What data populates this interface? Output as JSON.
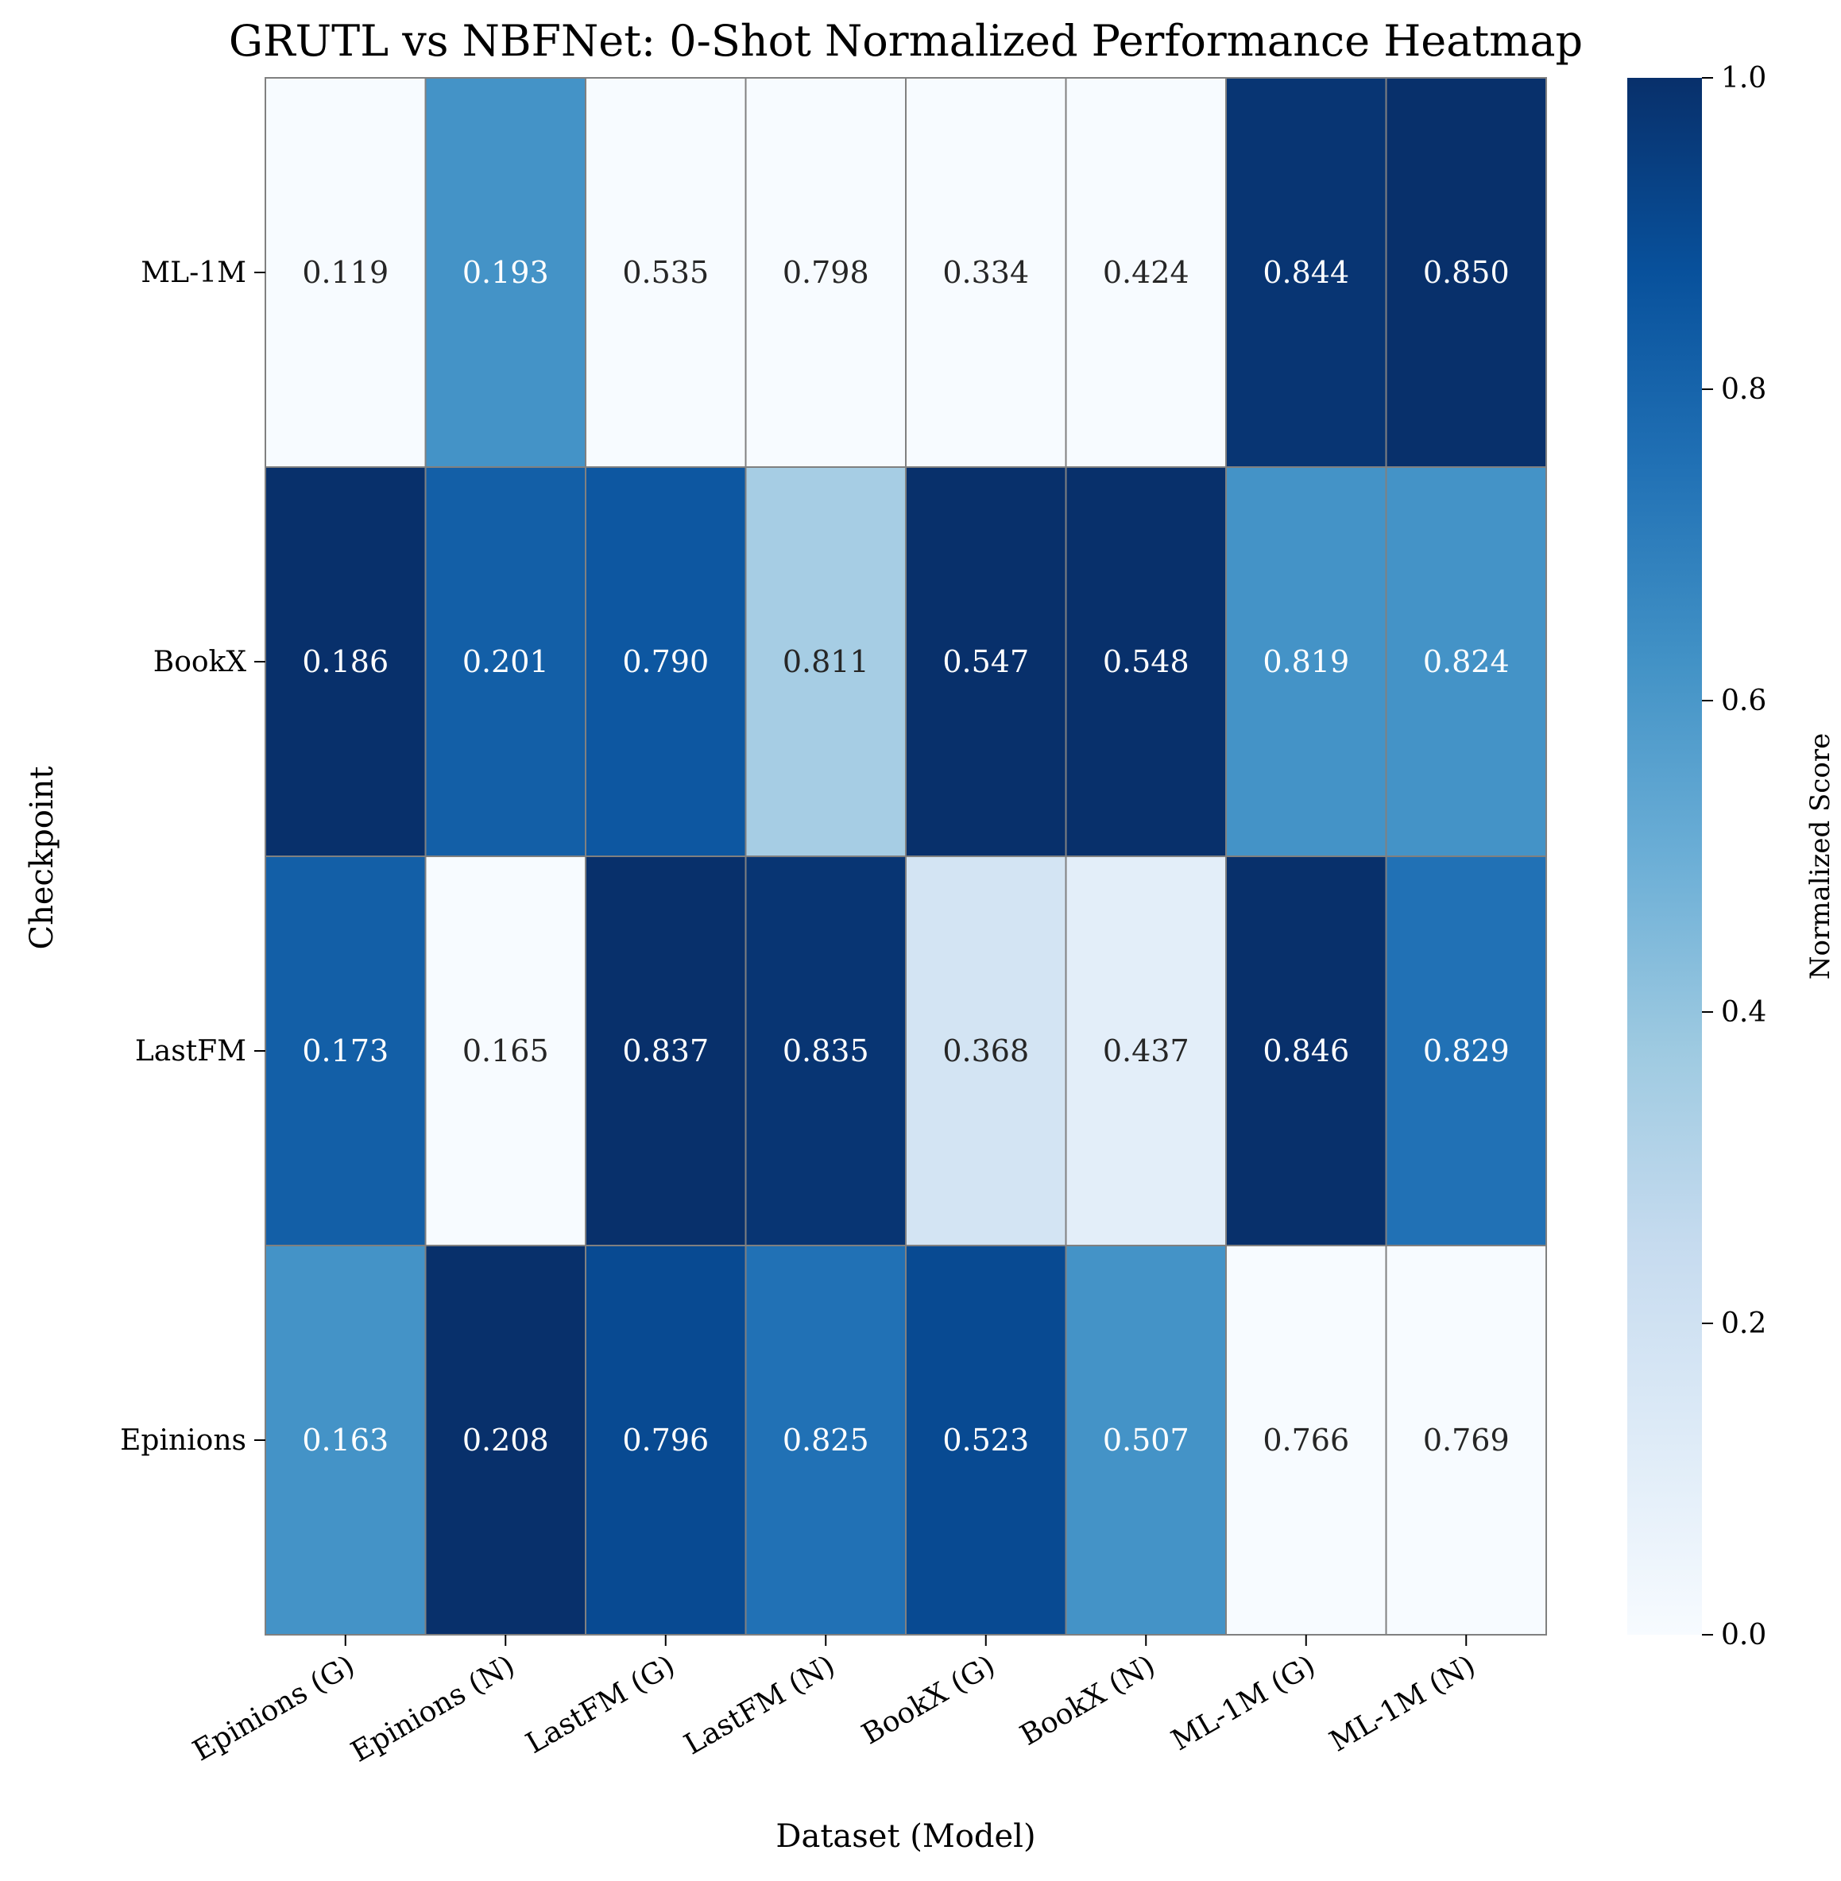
{
  "chart_data": {
    "type": "heatmap",
    "title": "GRUTL vs NBFNet: 0-Shot Normalized Performance Heatmap",
    "xlabel": "Dataset (Model)",
    "ylabel": "Checkpoint",
    "x_categories": [
      "Epinions (G)",
      "Epinions (N)",
      "LastFM (G)",
      "LastFM (N)",
      "BookX (G)",
      "BookX (N)",
      "ML-1M (G)",
      "ML-1M (N)"
    ],
    "y_categories": [
      "ML-1M",
      "BookX",
      "LastFM",
      "Epinions"
    ],
    "cell_labels": [
      [
        "0.119",
        "0.193",
        "0.535",
        "0.798",
        "0.334",
        "0.424",
        "0.844",
        "0.850"
      ],
      [
        "0.186",
        "0.201",
        "0.790",
        "0.811",
        "0.547",
        "0.548",
        "0.819",
        "0.824"
      ],
      [
        "0.173",
        "0.165",
        "0.837",
        "0.835",
        "0.368",
        "0.437",
        "0.846",
        "0.829"
      ],
      [
        "0.163",
        "0.208",
        "0.796",
        "0.825",
        "0.523",
        "0.507",
        "0.766",
        "0.769"
      ]
    ],
    "normalized_values": [
      [
        0.0,
        0.62,
        0.0,
        0.0,
        0.0,
        0.0,
        0.98,
        1.0
      ],
      [
        1.0,
        0.82,
        0.85,
        0.35,
        1.0,
        1.0,
        0.62,
        0.62
      ],
      [
        0.82,
        0.0,
        1.0,
        0.98,
        0.18,
        0.1,
        1.0,
        0.75
      ],
      [
        0.62,
        1.0,
        0.9,
        0.75,
        0.9,
        0.62,
        0.0,
        0.0
      ]
    ],
    "colorbar": {
      "label": "Normalized Score",
      "range": [
        0.0,
        1.0
      ],
      "ticks": [
        "0.0",
        "0.2",
        "0.4",
        "0.6",
        "0.8",
        "1.0"
      ],
      "colormap": "Blues"
    }
  }
}
